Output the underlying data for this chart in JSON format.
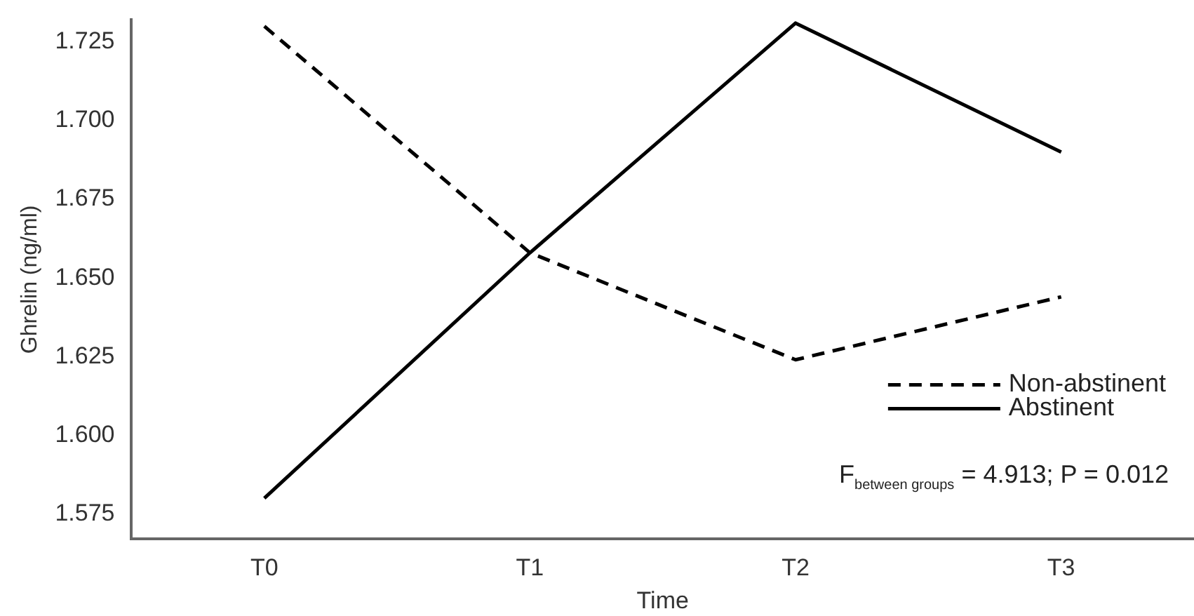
{
  "chart_data": {
    "type": "line",
    "xlabel": "Time",
    "ylabel": "Ghrelin (ng/ml)",
    "categories": [
      "T0",
      "T1",
      "T2",
      "T3"
    ],
    "series": [
      {
        "name": "Non-abstinent",
        "color": "#000000",
        "line_style": "dashed",
        "values": [
          1.73,
          1.658,
          1.624,
          1.644
        ]
      },
      {
        "name": "Abstinent",
        "color": "#000000",
        "line_style": "solid",
        "values": [
          1.58,
          1.658,
          1.731,
          1.69
        ]
      }
    ],
    "ylim": [
      1.567,
      1.732
    ],
    "yticks": [
      {
        "value": 1.575,
        "label": "1.575"
      },
      {
        "value": 1.6,
        "label": "1.600"
      },
      {
        "value": 1.625,
        "label": "1.625"
      },
      {
        "value": 1.65,
        "label": "1.650"
      },
      {
        "value": 1.675,
        "label": "1.675"
      },
      {
        "value": 1.7,
        "label": "1.700"
      },
      {
        "value": 1.725,
        "label": "1.725"
      }
    ],
    "grid": false,
    "legend": "bottom right",
    "marker": "none",
    "annotations": [
      "F$_{between groups}$ = 4.913; P = 0.012"
    ]
  }
}
